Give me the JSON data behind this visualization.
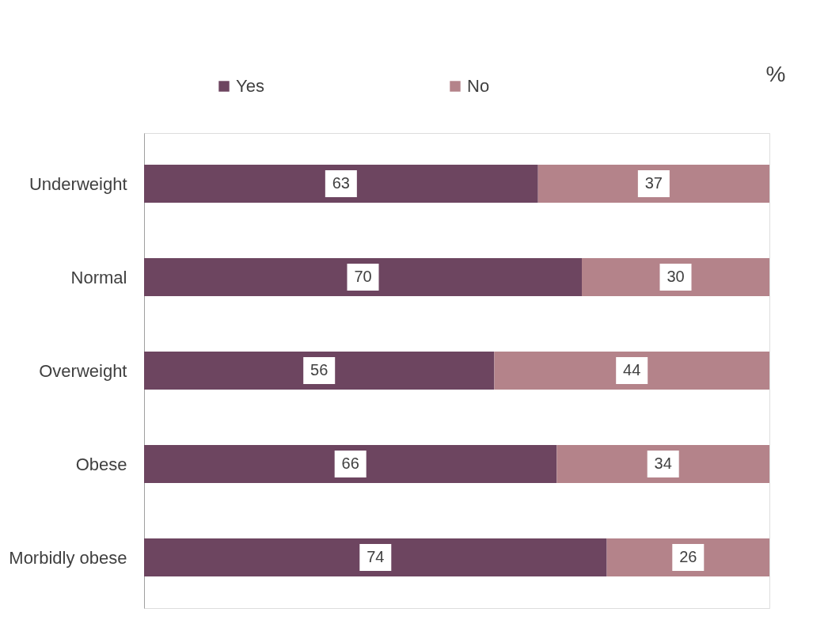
{
  "chart_data": {
    "type": "bar",
    "orientation": "horizontal",
    "stacked": true,
    "xlabel": "%",
    "legend": "top",
    "data_labels": true,
    "grid": false,
    "categories": [
      "Underweight",
      "Normal",
      "Overweight",
      "Obese",
      "Morbidly obese"
    ],
    "series": [
      {
        "name": "Yes",
        "color": "#6d4560",
        "values": [
          63,
          70,
          56,
          66,
          74
        ]
      },
      {
        "name": "No",
        "color": "#b4838a",
        "values": [
          37,
          30,
          44,
          34,
          26
        ]
      }
    ]
  }
}
